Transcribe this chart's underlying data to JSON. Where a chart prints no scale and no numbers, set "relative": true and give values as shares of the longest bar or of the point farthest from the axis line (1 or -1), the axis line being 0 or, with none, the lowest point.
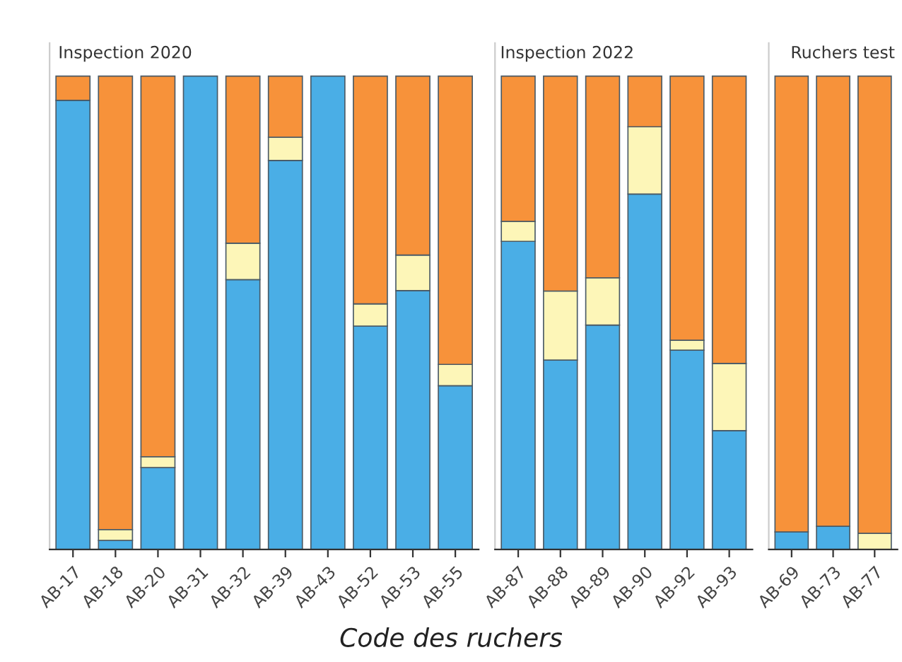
{
  "chart_data": [
    {
      "type": "bar",
      "title": "Inspection 2020",
      "stacked": true,
      "relative": true,
      "categories": [
        "AB-17",
        "AB-18",
        "AB-20",
        "AB-31",
        "AB-32",
        "AB-39",
        "AB-43",
        "AB-52",
        "AB-53",
        "AB-55"
      ],
      "series": [
        {
          "color": "#4aaee6",
          "values": [
            0.949,
            0.019,
            0.173,
            1.0,
            0.57,
            0.822,
            1.0,
            0.472,
            0.547,
            0.346
          ]
        },
        {
          "color": "#fdf6b8",
          "values": [
            0,
            0.023,
            0.023,
            0,
            0.077,
            0.049,
            0,
            0.047,
            0.075,
            0.045
          ]
        },
        {
          "color": "#f7923a",
          "values": [
            0.051,
            0.958,
            0.804,
            0,
            0.353,
            0.129,
            0,
            0.481,
            0.378,
            0.609
          ]
        }
      ]
    },
    {
      "type": "bar",
      "title": "Inspection 2022",
      "xlabel": "Code des ruchers",
      "stacked": true,
      "relative": true,
      "categories": [
        "AB-87",
        "AB-88",
        "AB-89",
        "AB-90",
        "AB-92",
        "AB-93"
      ],
      "series": [
        {
          "color": "#4aaee6",
          "values": [
            0.651,
            0.4,
            0.474,
            0.751,
            0.421,
            0.251
          ]
        },
        {
          "color": "#fdf6b8",
          "values": [
            0.042,
            0.146,
            0.1,
            0.142,
            0.021,
            0.142
          ]
        },
        {
          "color": "#f7923a",
          "values": [
            0.307,
            0.454,
            0.426,
            0.107,
            0.558,
            0.607
          ]
        }
      ]
    },
    {
      "type": "bar",
      "title": "Ruchers test",
      "stacked": true,
      "relative": true,
      "categories": [
        "AB-69",
        "AB-73",
        "AB-77"
      ],
      "series": [
        {
          "color": "#4aaee6",
          "values": [
            0.037,
            0.049,
            0
          ]
        },
        {
          "color": "#fdf6b8",
          "values": [
            0,
            0,
            0.034
          ]
        },
        {
          "color": "#f7923a",
          "values": [
            0.963,
            0.951,
            0.966
          ]
        }
      ]
    }
  ]
}
